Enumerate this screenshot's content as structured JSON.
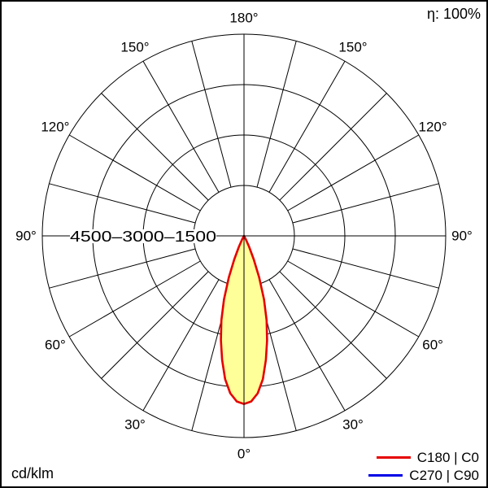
{
  "page": {
    "efficiency_label": "η: 100%",
    "unit_label": "cd/klm"
  },
  "legend": {
    "items": [
      {
        "label": "C180 | C0",
        "color": "#e60000"
      },
      {
        "label": "C270 | C90",
        "color": "#0000e6"
      }
    ]
  },
  "chart_data": {
    "type": "line",
    "coordinate_system": "polar",
    "units": "cd/klm",
    "efficiency_label": "η: 100%",
    "ring_values": [
      1500,
      3000,
      4500,
      6000
    ],
    "ring_axis_label": "4500–3000–1500",
    "spoke_step_deg": 15,
    "angle_ticks": [
      {
        "label": "180°",
        "angle_deg": 180,
        "side": 0
      },
      {
        "label": "150°",
        "angle_deg": 150,
        "side": -1
      },
      {
        "label": "150°",
        "angle_deg": 150,
        "side": 1
      },
      {
        "label": "120°",
        "angle_deg": 120,
        "side": -1
      },
      {
        "label": "120°",
        "angle_deg": 120,
        "side": 1
      },
      {
        "label": "90°",
        "angle_deg": 90,
        "side": -1
      },
      {
        "label": "90°",
        "angle_deg": 90,
        "side": 1
      },
      {
        "label": "60°",
        "angle_deg": 60,
        "side": -1
      },
      {
        "label": "60°",
        "angle_deg": 60,
        "side": 1
      },
      {
        "label": "30°",
        "angle_deg": 30,
        "side": -1
      },
      {
        "label": "30°",
        "angle_deg": 30,
        "side": 1
      },
      {
        "label": "0°",
        "angle_deg": 0,
        "side": 0
      }
    ],
    "series": [
      {
        "name": "C270 | C90",
        "color": "#0000e6",
        "fill": null,
        "stroke_width": 2,
        "gamma_deg": [
          0,
          2.5,
          5,
          7.5,
          10,
          12.5,
          15,
          17.5,
          20,
          22.5,
          25,
          27.5,
          30
        ],
        "values": [
          5000,
          4930,
          4700,
          4300,
          3750,
          3180,
          2600,
          1980,
          1320,
          760,
          360,
          120,
          0
        ]
      },
      {
        "name": "C180 | C0",
        "color": "#e60000",
        "fill": "#ffff99",
        "stroke_width": 2.6,
        "gamma_deg": [
          0,
          2.5,
          5,
          7.5,
          10,
          12.5,
          15,
          17.5,
          20,
          22.5,
          25,
          27.5,
          30
        ],
        "values": [
          5000,
          4930,
          4700,
          4300,
          3750,
          3180,
          2600,
          1980,
          1320,
          760,
          360,
          120,
          0
        ]
      }
    ]
  }
}
